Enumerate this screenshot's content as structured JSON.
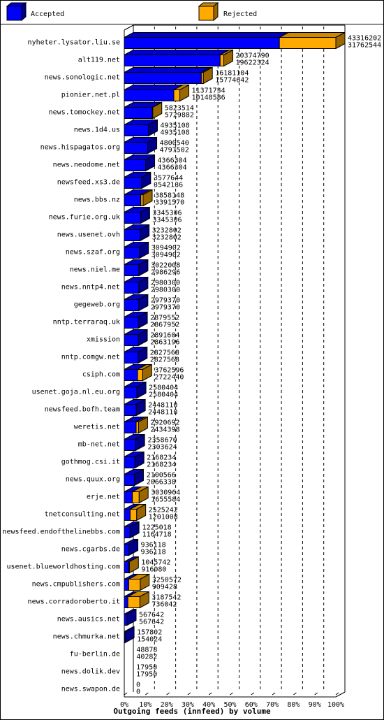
{
  "chart_data": {
    "type": "bar",
    "orientation": "horizontal",
    "title": "Outgoing feeds (innfeed) by volume",
    "xlabel": "",
    "ylabel": "",
    "xlim": [
      0,
      100
    ],
    "x_ticks": [
      "0%",
      "10%",
      "20%",
      "30%",
      "40%",
      "50%",
      "60%",
      "70%",
      "80%",
      "90%",
      "100%"
    ],
    "legend_position": "top",
    "max_value": 43316202,
    "colors": {
      "accepted": "#0000ff",
      "rejected": "#ffaa00"
    },
    "categories": [
      "nyheter.lysator.liu.se",
      "alt119.net",
      "news.sonologic.net",
      "pionier.net.pl",
      "news.tomockey.net",
      "news.1d4.us",
      "news.hispagatos.org",
      "news.neodome.net",
      "newsfeed.xs3.de",
      "news.bbs.nz",
      "news.furie.org.uk",
      "news.usenet.ovh",
      "news.szaf.org",
      "news.niel.me",
      "news.nntp4.net",
      "gegeweb.org",
      "nntp.terraraq.uk",
      "xmission",
      "nntp.comgw.net",
      "csiph.com",
      "usenet.goja.nl.eu.org",
      "newsfeed.bofh.team",
      "weretis.net",
      "mb-net.net",
      "gothmog.csi.it",
      "news.quux.org",
      "erje.net",
      "tnetconsulting.net",
      "newsfeed.endofthelinebbs.com",
      "news.cgarbs.de",
      "usenet.blueworldhosting.com",
      "news.cmpublishers.com",
      "news.corradoroberto.it",
      "news.ausics.net",
      "news.chmurka.net",
      "fu-berlin.de",
      "news.dolik.dev",
      "news.swapon.de"
    ],
    "series": [
      {
        "name": "Accepted",
        "values": [
          43316202,
          20374790,
          16181104,
          11371734,
          5823514,
          4935108,
          4800540,
          4366304,
          3577644,
          3858148,
          3345306,
          3232802,
          3094902,
          3022008,
          2980300,
          2979370,
          2879552,
          2891604,
          2827568,
          3762596,
          2580404,
          2448110,
          2920692,
          2358670,
          2168234,
          2100566,
          3030964,
          2525242,
          1225018,
          936118,
          1045742,
          3250572,
          3187542,
          567642,
          157802,
          48878,
          17950,
          0
        ]
      },
      {
        "name": "Rejected",
        "values": [
          31762544,
          19622324,
          15774642,
          10148586,
          5729882,
          4935108,
          4797502,
          4366304,
          3542136,
          3391570,
          3345306,
          3232802,
          3094902,
          2986296,
          2980300,
          2979370,
          2867952,
          2863196,
          2827568,
          2722440,
          2580404,
          2448110,
          2434398,
          2303624,
          2168234,
          2066338,
          1655584,
          1201008,
          1164718,
          936118,
          916080,
          909428,
          736042,
          567642,
          154024,
          40282,
          17950,
          0
        ]
      }
    ]
  },
  "legend": {
    "accepted_label": "Accepted",
    "rejected_label": "Rejected"
  }
}
